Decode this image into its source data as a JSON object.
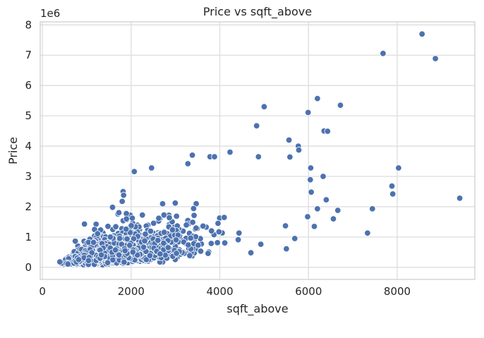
{
  "chart_data": {
    "type": "scatter",
    "title": "Price vs sqft_above",
    "xlabel": "sqft_above",
    "ylabel": "Price",
    "y_offset_label": "1e6",
    "xlim": [
      -50,
      9750
    ],
    "ylim": [
      -0.4,
      8.1
    ],
    "y_scale_note": "y values in millions (1e6)",
    "xticks": [
      0,
      2000,
      4000,
      6000,
      8000
    ],
    "yticks": [
      0,
      1,
      2,
      3,
      4,
      5,
      6,
      7,
      8
    ],
    "grid": true,
    "legend": "none",
    "colors": {
      "point": "#4c72b0",
      "point_edge": "#ffffff",
      "grid": "#dddddd",
      "axes_edge": "#cccccc"
    },
    "highlight_points": [
      {
        "x": 8560,
        "y": 7.7
      },
      {
        "x": 7680,
        "y": 7.06
      },
      {
        "x": 8860,
        "y": 6.89
      },
      {
        "x": 6720,
        "y": 5.35
      },
      {
        "x": 6200,
        "y": 5.57
      },
      {
        "x": 5000,
        "y": 5.3
      },
      {
        "x": 5990,
        "y": 5.11
      },
      {
        "x": 4830,
        "y": 4.67
      },
      {
        "x": 6350,
        "y": 4.5
      },
      {
        "x": 6430,
        "y": 4.49
      },
      {
        "x": 5560,
        "y": 4.2
      },
      {
        "x": 5770,
        "y": 4.0
      },
      {
        "x": 5780,
        "y": 3.87
      },
      {
        "x": 5580,
        "y": 3.64
      },
      {
        "x": 4870,
        "y": 3.65
      },
      {
        "x": 3780,
        "y": 3.65
      },
      {
        "x": 3880,
        "y": 3.65
      },
      {
        "x": 4230,
        "y": 3.8
      },
      {
        "x": 3380,
        "y": 3.7
      },
      {
        "x": 6050,
        "y": 3.28
      },
      {
        "x": 8030,
        "y": 3.28
      },
      {
        "x": 6330,
        "y": 3.0
      },
      {
        "x": 6040,
        "y": 2.89
      },
      {
        "x": 6060,
        "y": 2.48
      },
      {
        "x": 7880,
        "y": 2.68
      },
      {
        "x": 7900,
        "y": 2.42
      },
      {
        "x": 6400,
        "y": 2.23
      },
      {
        "x": 9410,
        "y": 2.28
      },
      {
        "x": 7440,
        "y": 1.93
      },
      {
        "x": 6200,
        "y": 1.93
      },
      {
        "x": 6660,
        "y": 1.88
      },
      {
        "x": 6560,
        "y": 1.6
      },
      {
        "x": 7330,
        "y": 1.13
      },
      {
        "x": 6130,
        "y": 1.35
      },
      {
        "x": 5500,
        "y": 0.61
      },
      {
        "x": 4700,
        "y": 0.48
      },
      {
        "x": 5690,
        "y": 0.95
      },
      {
        "x": 5980,
        "y": 1.67
      },
      {
        "x": 5480,
        "y": 1.37
      },
      {
        "x": 3280,
        "y": 3.42
      },
      {
        "x": 2460,
        "y": 3.28
      },
      {
        "x": 2070,
        "y": 3.16
      },
      {
        "x": 1820,
        "y": 2.5
      },
      {
        "x": 1830,
        "y": 2.38
      },
      {
        "x": 1580,
        "y": 1.98
      }
    ],
    "cloud": {
      "count": 2600,
      "x_min": 380,
      "x_max": 5600,
      "x_mode": 1400,
      "price_per_sqft_base": 0.00027,
      "price_floor": 0.08
    }
  }
}
